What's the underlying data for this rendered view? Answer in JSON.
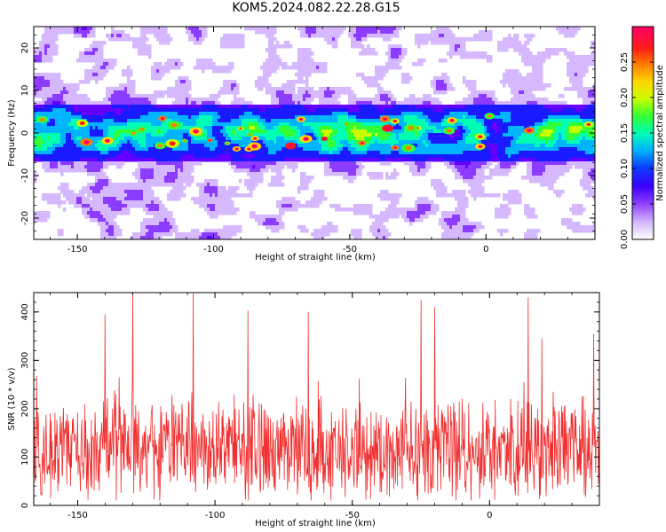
{
  "title": "KOM5.2024.082.22.28.G15",
  "chart_data": [
    {
      "type": "heatmap",
      "xlabel": "Height of straight line (km)",
      "ylabel": "Frequency (Hz)",
      "xlim": [
        -166,
        40
      ],
      "ylim": [
        -25,
        25
      ],
      "xticks": [
        -150,
        -100,
        -50,
        0
      ],
      "yticks": [
        -20,
        -10,
        0,
        10,
        20
      ],
      "colorbar": {
        "label": "Normalized spectral amplitude",
        "range": [
          0,
          0.3
        ],
        "ticks": [
          "0.00",
          "0.05",
          "0.10",
          "0.15",
          "0.20",
          "0.25"
        ]
      },
      "signal_band": {
        "center_hz": 0,
        "half_width_hz": 5,
        "peak_amplitude": 0.28
      },
      "background_amplitude": 0.02,
      "colors": [
        "#ffffff",
        "#d6b8ff",
        "#8c3cff",
        "#6400ff",
        "#1a1aff",
        "#00b4ff",
        "#00ffb4",
        "#33ff33",
        "#c8ff00",
        "#ffd700",
        "#ff7f00",
        "#ff1a1a",
        "#ff0066"
      ]
    },
    {
      "type": "line",
      "xlabel": "Height of straight line (km)",
      "ylabel": "SNR (10 * v/v)",
      "xlim": [
        -166,
        40
      ],
      "ylim": [
        0,
        440
      ],
      "xticks": [
        -150,
        -100,
        -50,
        0
      ],
      "yticks": [
        0,
        100,
        200,
        300,
        400
      ],
      "color": "#f03030",
      "samples": 1200,
      "mean": 115,
      "typical_range": [
        20,
        260
      ],
      "peaks": [
        {
          "x": -130,
          "y": 440
        },
        {
          "x": -108,
          "y": 440
        },
        {
          "x": -88,
          "y": 403
        },
        {
          "x": -66,
          "y": 400
        },
        {
          "x": -25,
          "y": 425
        },
        {
          "x": -20,
          "y": 410
        },
        {
          "x": 14,
          "y": 430
        },
        {
          "x": 19,
          "y": 345
        },
        {
          "x": 38,
          "y": 355
        },
        {
          "x": -140,
          "y": 395
        }
      ]
    }
  ]
}
